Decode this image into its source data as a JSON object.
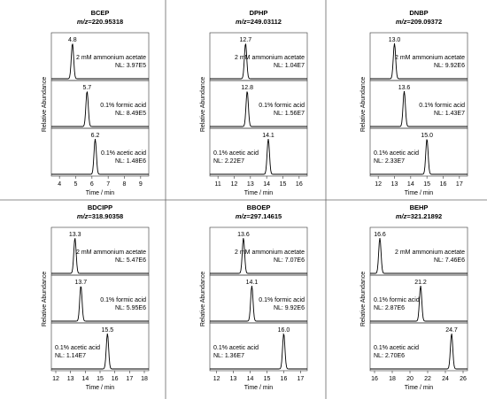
{
  "figure": {
    "ylabel": "Relative Abundance",
    "xlabel": "Time / min",
    "mz_prefix": "m/z"
  },
  "colors": {
    "frame": "#333333",
    "divider": "#666666",
    "trace": "#000000",
    "background": "#ffffff"
  },
  "chart_data": [
    {
      "type": "line",
      "title": "BCEP",
      "mz": "220.95318",
      "xlim": [
        3.5,
        9.5
      ],
      "xticks": [
        4,
        5,
        6,
        7,
        8,
        9
      ],
      "ylim": [
        0,
        100
      ],
      "xlabel": "Time / min",
      "ylabel": "Relative Abundance",
      "series": [
        {
          "condition": "2 mM ammonium acetate",
          "nl": "NL: 3.97E5",
          "peak_rt": 4.8,
          "peak_label": "4.8",
          "label_pos": "right"
        },
        {
          "condition": "0.1% formic acid",
          "nl": "NL: 8.49E5",
          "peak_rt": 5.7,
          "peak_label": "5.7",
          "label_pos": "right"
        },
        {
          "condition": "0.1% acetic acid",
          "nl": "NL: 1.48E6",
          "peak_rt": 6.2,
          "peak_label": "6.2",
          "label_pos": "right"
        }
      ]
    },
    {
      "type": "line",
      "title": "DPHP",
      "mz": "249.03112",
      "xlim": [
        10.5,
        16.5
      ],
      "xticks": [
        11,
        12,
        13,
        14,
        15,
        16
      ],
      "ylim": [
        0,
        100
      ],
      "xlabel": "Time / min",
      "ylabel": "Relative Abundance",
      "series": [
        {
          "condition": "2 mM ammonium acetate",
          "nl": "NL: 1.04E7",
          "peak_rt": 12.7,
          "peak_label": "12.7",
          "label_pos": "right"
        },
        {
          "condition": "0.1% formic acid",
          "nl": "NL: 1.56E7",
          "peak_rt": 12.8,
          "peak_label": "12.8",
          "label_pos": "right"
        },
        {
          "condition": "0.1% acetic acid",
          "nl": "NL: 2.22E7",
          "peak_rt": 14.1,
          "peak_label": "14.1",
          "label_pos": "left"
        }
      ]
    },
    {
      "type": "line",
      "title": "DNBP",
      "mz": "209.09372",
      "xlim": [
        11.5,
        17.5
      ],
      "xticks": [
        12,
        13,
        14,
        15,
        16,
        17
      ],
      "ylim": [
        0,
        100
      ],
      "xlabel": "Time / min",
      "ylabel": "Relative Abundance",
      "series": [
        {
          "condition": "2 mM ammonium acetate",
          "nl": "NL: 9.92E6",
          "peak_rt": 13.0,
          "peak_label": "13.0",
          "label_pos": "right"
        },
        {
          "condition": "0.1% formic acid",
          "nl": "NL: 1.43E7",
          "peak_rt": 13.6,
          "peak_label": "13.6",
          "label_pos": "right"
        },
        {
          "condition": "0.1% acetic acid",
          "nl": "NL: 2.33E7",
          "peak_rt": 15.0,
          "peak_label": "15.0",
          "label_pos": "left"
        }
      ]
    },
    {
      "type": "line",
      "title": "BDCIPP",
      "mz": "318.90358",
      "xlim": [
        11.7,
        18.3
      ],
      "xticks": [
        12,
        13,
        14,
        15,
        16,
        17,
        18
      ],
      "ylim": [
        0,
        100
      ],
      "xlabel": "Time / min",
      "ylabel": "Relative Abundance",
      "series": [
        {
          "condition": "2 mM ammonium acetate",
          "nl": "NL: 5.47E6",
          "peak_rt": 13.3,
          "peak_label": "13.3",
          "label_pos": "right"
        },
        {
          "condition": "0.1% formic acid",
          "nl": "NL: 5.95E6",
          "peak_rt": 13.7,
          "peak_label": "13.7",
          "label_pos": "right"
        },
        {
          "condition": "0.1% acetic acid",
          "nl": "NL: 1.14E7",
          "peak_rt": 15.5,
          "peak_label": "15.5",
          "label_pos": "left"
        }
      ]
    },
    {
      "type": "line",
      "title": "BBOEP",
      "mz": "297.14615",
      "xlim": [
        11.6,
        17.4
      ],
      "xticks": [
        12,
        13,
        14,
        15,
        16,
        17
      ],
      "ylim": [
        0,
        100
      ],
      "xlabel": "Time / min",
      "ylabel": "Relative Abundance",
      "series": [
        {
          "condition": "2 mM ammonium acetate",
          "nl": "NL: 7.07E6",
          "peak_rt": 13.6,
          "peak_label": "13.6",
          "label_pos": "right"
        },
        {
          "condition": "0.1% formic acid",
          "nl": "NL: 9.92E6",
          "peak_rt": 14.1,
          "peak_label": "14.1",
          "label_pos": "right"
        },
        {
          "condition": "0.1% acetic acid",
          "nl": "NL: 1.36E7",
          "peak_rt": 16.0,
          "peak_label": "16.0",
          "label_pos": "left"
        }
      ]
    },
    {
      "type": "line",
      "title": "BEHP",
      "mz": "321.21892",
      "xlim": [
        15.5,
        26.5
      ],
      "xticks": [
        16,
        18,
        20,
        22,
        24,
        26
      ],
      "ylim": [
        0,
        100
      ],
      "xlabel": "Time / min",
      "ylabel": "Relative Abundance",
      "series": [
        {
          "condition": "2 mM ammonium acetate",
          "nl": "NL: 7.46E6",
          "peak_rt": 16.6,
          "peak_label": "16.6",
          "label_pos": "right"
        },
        {
          "condition": "0.1% formic acid",
          "nl": "NL: 2.87E6",
          "peak_rt": 21.2,
          "peak_label": "21.2",
          "label_pos": "left"
        },
        {
          "condition": "0.1% acetic acid",
          "nl": "NL: 2.70E6",
          "peak_rt": 24.7,
          "peak_label": "24.7",
          "label_pos": "left"
        }
      ]
    }
  ]
}
